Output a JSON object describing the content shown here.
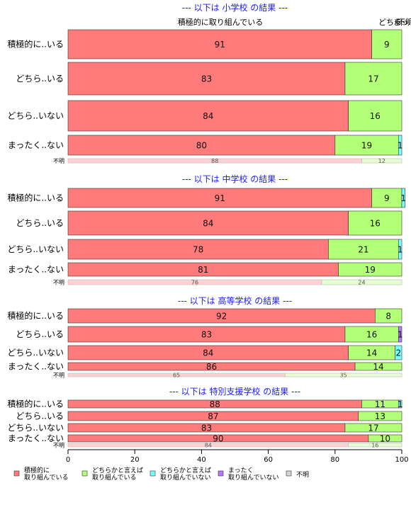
{
  "chart_data": {
    "type": "bar",
    "orientation": "horizontal",
    "stacked": "percent",
    "xlim": [
      0,
      100
    ],
    "x_ticks": [
      0,
      20,
      40,
      60,
      80,
      100
    ],
    "top_labels": [
      "積極的に取り組んでいる",
      "どちら..",
      "まっ..",
      "不明"
    ],
    "categories": [
      {
        "key": "c1",
        "label": "積極的に\n取り組んでいる",
        "color": "#ff7b7b"
      },
      {
        "key": "c2",
        "label": "どちらかと言えば\n取り組んでいる",
        "color": "#b4ff78"
      },
      {
        "key": "c3",
        "label": "どちらかと言えば\n取り組んでいない",
        "color": "#78ffff"
      },
      {
        "key": "c4",
        "label": "まったく\n取り組んでいない",
        "color": "#b478ff"
      },
      {
        "key": "c5",
        "label": "不明",
        "color": "#d3d3d3"
      }
    ],
    "panels": [
      {
        "title": "--- 以下は 小学校 の結果 ---",
        "rows": [
          {
            "label": "積極的に..いる",
            "values": [
              91,
              9,
              0,
              0,
              0
            ]
          },
          {
            "label": "どちら..いる",
            "values": [
              83,
              17,
              0,
              0,
              0
            ]
          },
          {
            "label": "どちら..いない",
            "values": [
              84,
              16,
              0,
              0,
              0
            ]
          },
          {
            "label": "まったく..ない",
            "values": [
              80,
              19,
              1,
              0,
              0
            ]
          },
          {
            "label": "不明",
            "values": [
              88,
              12,
              0,
              0,
              0
            ],
            "unknown": true
          }
        ]
      },
      {
        "title": "--- 以下は 中学校 の結果 ---",
        "rows": [
          {
            "label": "積極的に..いる",
            "values": [
              91,
              9,
              1,
              0,
              0
            ]
          },
          {
            "label": "どちら..いる",
            "values": [
              84,
              16,
              0,
              0,
              0
            ]
          },
          {
            "label": "どちら..いない",
            "values": [
              78,
              21,
              1,
              0,
              0
            ]
          },
          {
            "label": "まったく..ない",
            "values": [
              81,
              19,
              0,
              0,
              0
            ]
          },
          {
            "label": "不明",
            "values": [
              76,
              24,
              0,
              0,
              0
            ],
            "unknown": true
          }
        ]
      },
      {
        "title": "--- 以下は 高等学校 の結果 ---",
        "rows": [
          {
            "label": "積極的に..いる",
            "values": [
              92,
              8,
              0,
              0,
              0
            ]
          },
          {
            "label": "どちら..いる",
            "values": [
              83,
              16,
              0,
              1,
              0
            ]
          },
          {
            "label": "どちら..いない",
            "values": [
              84,
              14,
              2,
              0,
              0
            ]
          },
          {
            "label": "まったく..ない",
            "values": [
              86,
              14,
              0,
              0,
              0
            ]
          },
          {
            "label": "不明",
            "values": [
              65,
              35,
              0,
              0,
              0
            ],
            "unknown": true
          }
        ]
      },
      {
        "title": "--- 以下は 特別支援学校 の結果 ---",
        "rows": [
          {
            "label": "積極的に..いる",
            "values": [
              88,
              11,
              1,
              0,
              0
            ]
          },
          {
            "label": "どちら..いる",
            "values": [
              87,
              13,
              0,
              0,
              0
            ]
          },
          {
            "label": "どちら..いない",
            "values": [
              83,
              17,
              0,
              0,
              0
            ]
          },
          {
            "label": "まったく..ない",
            "values": [
              90,
              10,
              0,
              0,
              0
            ]
          },
          {
            "label": "不明",
            "values": [
              84,
              16,
              0,
              0,
              0
            ],
            "unknown": true
          }
        ]
      }
    ]
  }
}
